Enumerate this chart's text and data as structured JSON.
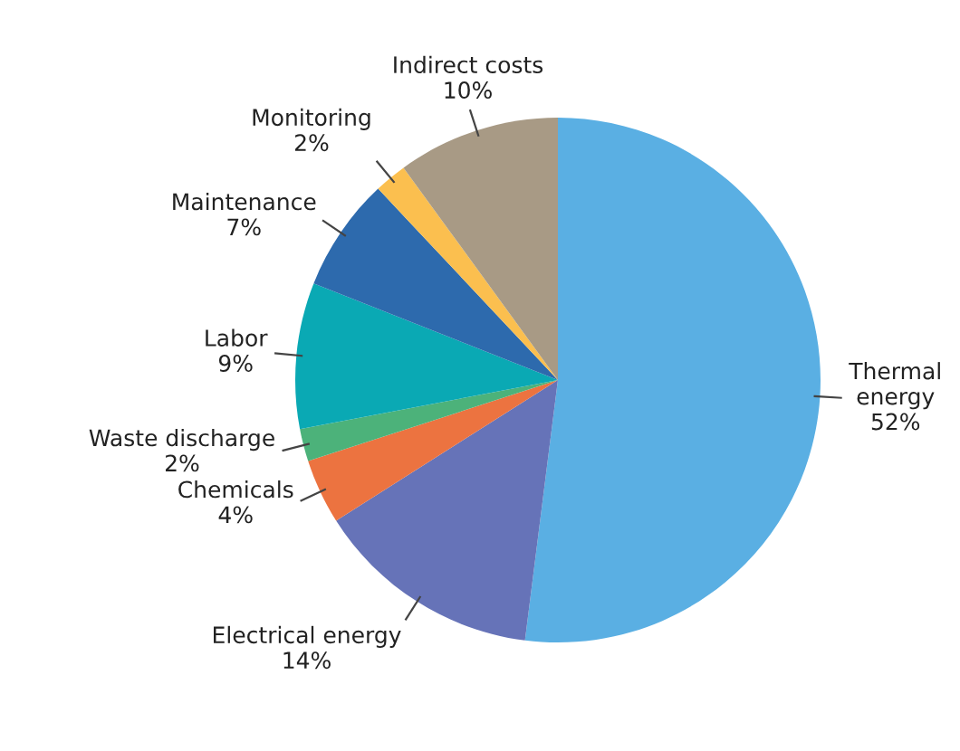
{
  "chart_data": {
    "type": "pie",
    "categories": [
      "Thermal energy",
      "Electrical energy",
      "Chemicals",
      "Waste discharge",
      "Labor",
      "Maintenance",
      "Monitoring",
      "Indirect costs"
    ],
    "values": [
      52,
      14,
      4,
      2,
      9,
      7,
      2,
      10
    ],
    "value_labels": [
      "52%",
      "14%",
      "4%",
      "2%",
      "9%",
      "7%",
      "2%",
      "10%"
    ],
    "colors": [
      "#5aafe3",
      "#6673b8",
      "#ec7340",
      "#4cb27a",
      "#0aa9b4",
      "#2d6aad",
      "#fbbf4f",
      "#a89a85"
    ]
  }
}
